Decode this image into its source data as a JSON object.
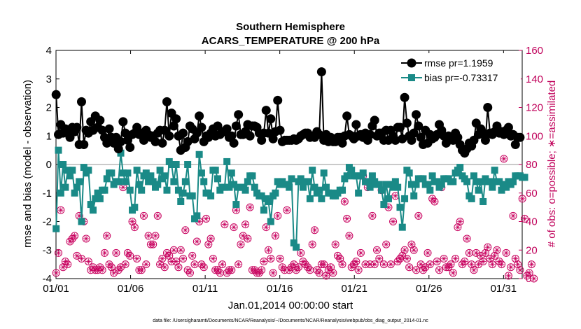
{
  "chart_data": {
    "type": "line",
    "title": "Southern Hemisphere",
    "subtitle": "ACARS_TEMPERATURE @ 200 hPa",
    "xlabel": "Jan.01,2014 00:00:00 start",
    "ylabel": "rmse and bias (model - observation)",
    "ylabel_right": "# of obs: o=possible; ∗=assimilated",
    "footnote": "data file: /Users/gharamti/Documents/NCAR/Reanalysis/~/Documents/NCAR/Reanalysis/webpub/obs_diag_output_2014-01.nc",
    "xlim": [
      0,
      31.25
    ],
    "ylim": [
      -4,
      4
    ],
    "ylim_right": [
      0,
      160
    ],
    "xticks": [
      0,
      5,
      10,
      15,
      20,
      25,
      30
    ],
    "xtick_labels": [
      "01/01",
      "01/06",
      "01/11",
      "01/16",
      "01/21",
      "01/26",
      "01/31"
    ],
    "yticks": [
      -4,
      -3,
      -2,
      -1,
      0,
      1,
      2,
      3,
      4
    ],
    "yticks_right": [
      0,
      20,
      40,
      60,
      80,
      100,
      120,
      140,
      160
    ],
    "colors": {
      "rmse": "#000000",
      "bias": "#1a8a87",
      "obs": "#c8005e",
      "zero": "#aaaaaa"
    },
    "series": [
      {
        "name": "rmse pr=1.1959",
        "values": [
          2.45,
          1.05,
          1.4,
          1.1,
          1.25,
          1.2,
          0.95,
          1.3,
          1.15,
          1.3,
          0.7,
          2.2,
          0.7,
          1.2,
          1.1,
          1.5,
          1.2,
          1.7,
          1.3,
          1.55,
          1.2,
          0.95,
          0.75,
          1.25,
          0.95,
          0.75,
          0.95,
          0.55,
          0.8,
          1.5,
          1.1,
          0.85,
          0.6,
          1.05,
          1.1,
          1.3,
          1.05,
          1.1,
          0.85,
          1.2,
          1.05,
          0.95,
          1.0,
          0.8,
          1.1,
          1.2,
          0.75,
          1.2,
          2.2,
          1.0,
          1.8,
          1.35,
          1.6,
          1.0,
          0.5,
          1.1,
          0.6,
          0.8,
          1.35,
          1.25,
          0.9,
          1.1,
          1.7,
          1.3,
          0.8,
          1.0,
          0.95,
          1.1,
          1.25,
          1.0,
          1.35,
          1.05,
          1.15,
          1.15,
          1.25,
          0.95,
          1.0,
          0.75,
          1.35,
          1.75,
          1.05,
          1.05,
          1.15,
          1.4,
          1.0,
          1.35,
          1.35,
          1.3,
          1.1,
          0.85,
          1.1,
          1.9,
          1.1,
          1.6,
          0.9,
          1.15,
          2.25,
          1.2,
          0.8,
          0.85,
          0.85,
          0.85,
          0.85,
          0.9,
          0.85,
          0.9,
          1.0,
          1.05,
          1.1,
          1.1,
          0.95,
          1.0,
          0.95,
          1.15,
          1.05,
          3.25,
          0.85,
          1.05,
          0.8,
          0.95,
          0.8,
          0.8,
          0.95,
          0.95,
          0.75,
          1.0,
          1.7,
          1.05,
          1.0,
          0.9,
          1.4,
          1.0,
          1.05,
          0.95,
          1.1,
          0.85,
          1.05,
          1.35,
          1.55,
          1.0,
          1.1,
          1.1,
          0.85,
          1.2,
          0.85,
          1.2,
          1.0,
          0.85,
          1.3,
          1.3,
          0.9,
          2.35,
          1.45,
          1.0,
          0.85,
          1.1,
          1.75,
          1.35,
          0.95,
          0.7,
          1.2,
          0.75,
          1.05,
          0.9,
          0.95,
          1.05,
          1.4,
          1.2,
          1.0,
          0.75,
          1.0,
          0.95,
          0.85,
          1.1,
          0.95,
          0.7,
          0.5,
          0.4,
          0.55,
          0.75,
          0.65,
          0.85,
          1.45,
          1.05,
          1.25,
          1.1,
          0.85,
          2.0,
          1.1,
          1.05,
          1.15,
          1.35,
          1.1,
          1.15,
          1.05,
          1.2,
          1.3,
          1.0,
          1.05,
          0.7,
          0.95,
          0.95
        ]
      },
      {
        "name": "bias pr=-0.73317",
        "values": [
          -2.25,
          0.5,
          -1.0,
          0.0,
          -0.8,
          -0.2,
          -0.4,
          -0.2,
          -1.0,
          -0.8,
          -0.6,
          -2.0,
          -0.1,
          -0.3,
          -0.2,
          -1.4,
          -1.6,
          -1.2,
          -1.0,
          -1.2,
          -0.9,
          -0.9,
          -0.5,
          -0.3,
          -0.3,
          -0.7,
          -0.6,
          -0.6,
          0.4,
          -0.3,
          -0.6,
          -0.3,
          -0.9,
          -1.6,
          -1.5,
          -0.2,
          -0.7,
          -0.9,
          -0.4,
          -0.3,
          -0.6,
          -0.4,
          -0.6,
          -0.8,
          -0.7,
          -0.2,
          -0.5,
          -0.4,
          -0.9,
          0.1,
          0.0,
          -0.6,
          0.0,
          -0.9,
          -1.3,
          -1.0,
          -0.6,
          0.0,
          -1.1,
          -1.1,
          -1.9,
          -1.8,
          0.35,
          -0.3,
          -0.6,
          -1.0,
          -1.0,
          -1.1,
          -0.2,
          -0.2,
          -0.5,
          -0.9,
          -0.8,
          -0.8,
          0.1,
          -0.8,
          -0.3,
          -0.7,
          -1.4,
          -0.8,
          -0.8,
          -0.8,
          -0.9,
          -0.6,
          -0.4,
          -0.4,
          -0.8,
          -1.0,
          -1.1,
          -1.1,
          -1.6,
          -1.2,
          -1.3,
          -2.0,
          -1.1,
          -1.0,
          -0.6,
          -0.7,
          -0.6,
          -0.7,
          -0.7,
          -0.8,
          -0.5,
          -2.75,
          -2.9,
          -0.6,
          -0.5,
          -0.8,
          -0.6,
          -0.6,
          -1.2,
          -0.2,
          -0.8,
          -1.0,
          -0.9,
          -1.2,
          -0.3,
          -0.8,
          -1.0,
          -1.0,
          -1.1,
          -1.1,
          -1.0,
          -0.9,
          -0.9,
          -0.5,
          -0.4,
          -0.1,
          -0.2,
          -0.4,
          -0.4,
          -1.0,
          -0.4,
          -0.3,
          -0.6,
          -0.6,
          -0.8,
          -0.4,
          -0.6,
          -0.7,
          -0.7,
          -0.9,
          -1.4,
          -0.7,
          -1.2,
          -0.7,
          -0.8,
          -0.6,
          -0.8,
          -1.5,
          -2.2,
          -1.2,
          -0.2,
          -0.3,
          -0.7,
          -1.1,
          -0.7,
          -0.5,
          -0.5,
          -0.5,
          -0.7,
          -0.7,
          -0.9,
          -0.4,
          -0.6,
          -0.6,
          -0.8,
          -0.7,
          -0.5,
          -0.5,
          -0.5,
          -0.6,
          -0.6,
          -0.3,
          -0.2,
          -0.1,
          -0.4,
          -0.5,
          -0.6,
          -1.1,
          -1.2,
          -0.4,
          -0.6,
          -0.9,
          -0.6,
          -1.3,
          -0.5,
          -0.6,
          -0.6,
          -0.8,
          -0.2,
          -0.6,
          -0.6,
          -0.9,
          -0.7,
          -0.8,
          -0.6,
          -0.7,
          -0.6,
          -0.4,
          -0.4,
          -0.4,
          -0.45,
          -0.45
        ]
      },
      {
        "name": "# of obs: possible",
        "axis": "right",
        "values": [
          4,
          18,
          48,
          8,
          12,
          10,
          26,
          28,
          30,
          16,
          44,
          14,
          40,
          28,
          12,
          6,
          8,
          6,
          6,
          8,
          6,
          18,
          30,
          10,
          8,
          4,
          18,
          6,
          8,
          64,
          10,
          18,
          16,
          40,
          36,
          14,
          6,
          6,
          44,
          10,
          30,
          24,
          24,
          30,
          44,
          10,
          14,
          8,
          18,
          16,
          12,
          20,
          12,
          8,
          20,
          14,
          34,
          6,
          4,
          16,
          10,
          26,
          40,
          10,
          8,
          42,
          24,
          28,
          14,
          6,
          6,
          4,
          10,
          38,
          4,
          6,
          6,
          36,
          48,
          10,
          24,
          30,
          38,
          28,
          50,
          6,
          6,
          4,
          4,
          6,
          12,
          36,
          20,
          14,
          4,
          30,
          44,
          14,
          8,
          6,
          48,
          6,
          8,
          10,
          6,
          8,
          18,
          12,
          10,
          8,
          6,
          24,
          34,
          6,
          4,
          10,
          10,
          2,
          6,
          8,
          4,
          24,
          16,
          14,
          10,
          54,
          42,
          30,
          8,
          10,
          12,
          6,
          18,
          72,
          10,
          64,
          10,
          44,
          10,
          20,
          14,
          62,
          10,
          24,
          50,
          10,
          40,
          58,
          12,
          14,
          16,
          20,
          14,
          8,
          24,
          20,
          6,
          44,
          10,
          6,
          8,
          18,
          10,
          56,
          54,
          12,
          6,
          64,
          14,
          8,
          8,
          10,
          4,
          14,
          36,
          40,
          10,
          12,
          28,
          18,
          10,
          6,
          18,
          10,
          16,
          12,
          18,
          22,
          14,
          10,
          16,
          20,
          12,
          10,
          84,
          18,
          2,
          8,
          44,
          14,
          10,
          6,
          56,
          42,
          2,
          4,
          10,
          0
        ]
      },
      {
        "name": "# of obs: assimilated",
        "axis": "right",
        "values": [
          4,
          18,
          48,
          8,
          12,
          10,
          26,
          28,
          30,
          16,
          44,
          14,
          40,
          28,
          12,
          6,
          8,
          6,
          6,
          8,
          6,
          18,
          30,
          10,
          8,
          4,
          18,
          6,
          8,
          64,
          10,
          18,
          16,
          40,
          36,
          14,
          6,
          6,
          44,
          10,
          30,
          24,
          24,
          30,
          44,
          10,
          14,
          8,
          18,
          16,
          12,
          20,
          12,
          8,
          20,
          14,
          34,
          6,
          4,
          16,
          10,
          26,
          40,
          10,
          8,
          42,
          24,
          28,
          14,
          6,
          6,
          4,
          10,
          38,
          4,
          6,
          6,
          36,
          48,
          10,
          24,
          30,
          38,
          28,
          50,
          6,
          6,
          4,
          4,
          6,
          12,
          36,
          20,
          14,
          4,
          30,
          44,
          14,
          8,
          6,
          48,
          6,
          8,
          10,
          6,
          8,
          18,
          12,
          10,
          8,
          6,
          24,
          34,
          6,
          4,
          10,
          10,
          2,
          6,
          8,
          4,
          24,
          16,
          14,
          10,
          54,
          42,
          30,
          8,
          10,
          12,
          6,
          18,
          72,
          10,
          64,
          10,
          44,
          10,
          20,
          14,
          62,
          10,
          24,
          50,
          10,
          40,
          58,
          12,
          14,
          16,
          20,
          14,
          8,
          24,
          20,
          6,
          44,
          10,
          6,
          8,
          18,
          10,
          56,
          54,
          12,
          6,
          64,
          14,
          8,
          8,
          10,
          4,
          14,
          36,
          40,
          10,
          12,
          28,
          18,
          10,
          6,
          18,
          10,
          16,
          12,
          18,
          22,
          14,
          10,
          16,
          20,
          12,
          10,
          84,
          18,
          2,
          8,
          44,
          14,
          10,
          6,
          56,
          42,
          2,
          4,
          10,
          0
        ]
      }
    ]
  }
}
